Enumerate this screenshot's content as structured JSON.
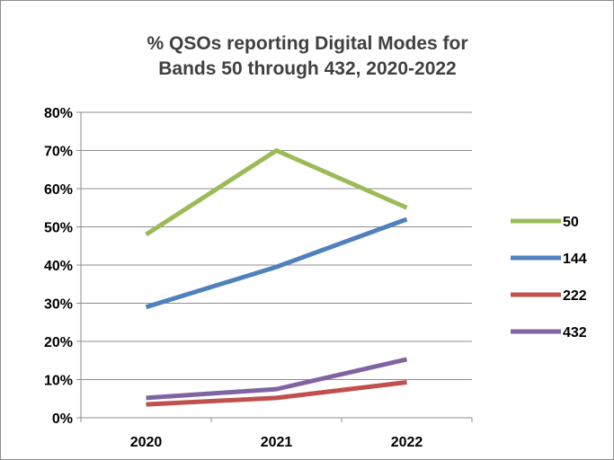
{
  "chart_data": {
    "type": "line",
    "title_lines": [
      "% QSOs reporting Digital Modes for",
      "Bands 50 through 432, 2020-2022"
    ],
    "categories": [
      "2020",
      "2021",
      "2022"
    ],
    "ylim": [
      0,
      0.8
    ],
    "y_ticks": [
      {
        "value": 0.0,
        "label": "0%"
      },
      {
        "value": 0.1,
        "label": "10%"
      },
      {
        "value": 0.2,
        "label": "20%"
      },
      {
        "value": 0.3,
        "label": "30%"
      },
      {
        "value": 0.4,
        "label": "40%"
      },
      {
        "value": 0.5,
        "label": "50%"
      },
      {
        "value": 0.6,
        "label": "60%"
      },
      {
        "value": 0.7,
        "label": "70%"
      },
      {
        "value": 0.8,
        "label": "80%"
      }
    ],
    "grid": true,
    "legend_position": "right",
    "series": [
      {
        "name": "50",
        "color": "#9bbb59",
        "values": [
          0.48,
          0.7,
          0.55
        ]
      },
      {
        "name": "144",
        "color": "#4f81bd",
        "values": [
          0.29,
          0.395,
          0.52
        ]
      },
      {
        "name": "222",
        "color": "#c0504d",
        "values": [
          0.035,
          0.052,
          0.093
        ]
      },
      {
        "name": "432",
        "color": "#8064a2",
        "values": [
          0.052,
          0.075,
          0.153
        ]
      }
    ]
  }
}
